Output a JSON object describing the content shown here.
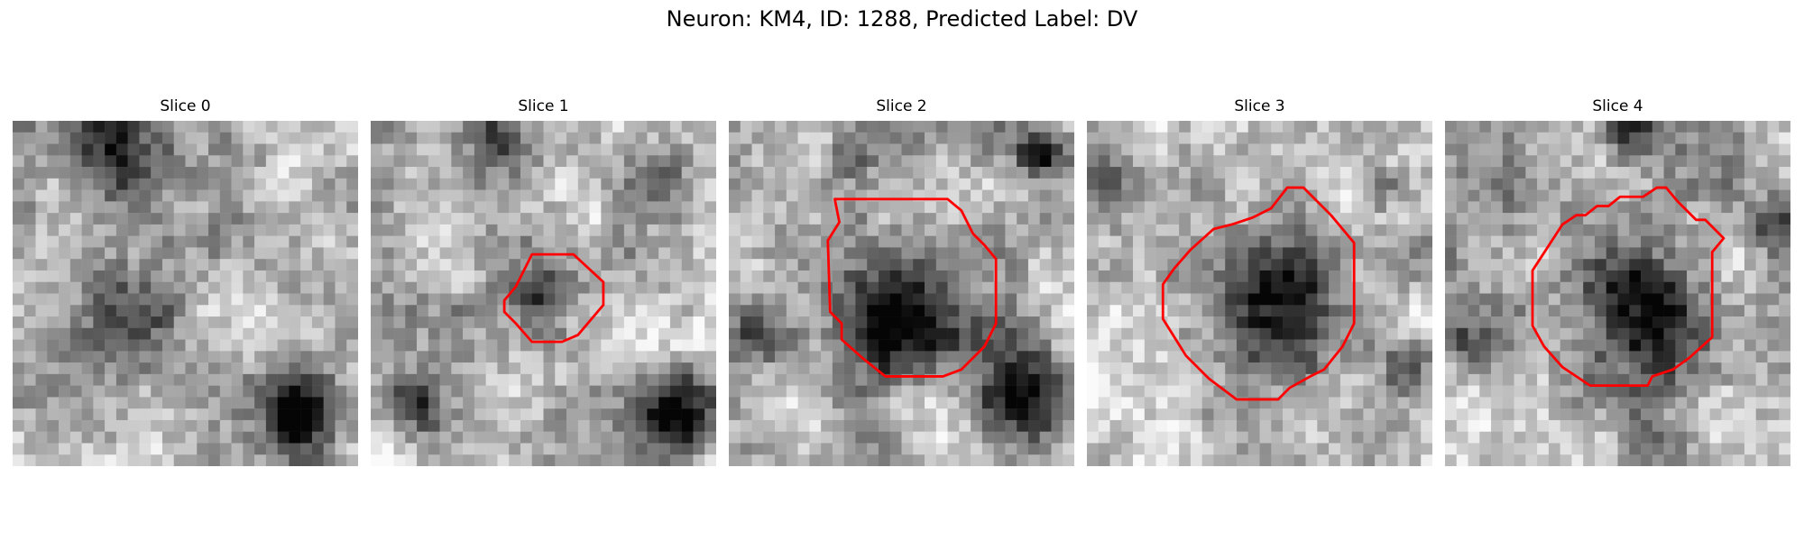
{
  "figure": {
    "title": "Neuron: KM4, ID: 1288, Predicted Label: DV"
  },
  "panels": [
    {
      "title": "Slice 0",
      "has_contour": false,
      "seed": 11,
      "blobs": [
        [
          0.32,
          0.55,
          0.18,
          0.35
        ],
        [
          0.85,
          0.85,
          0.14,
          0.75
        ],
        [
          0.28,
          0.08,
          0.14,
          0.55
        ],
        [
          0.58,
          0.35,
          0.08,
          0.25
        ]
      ]
    },
    {
      "title": "Slice 1",
      "has_contour": true,
      "seed": 23,
      "blobs": [
        [
          0.48,
          0.52,
          0.09,
          0.55
        ],
        [
          0.12,
          0.82,
          0.1,
          0.55
        ],
        [
          0.88,
          0.85,
          0.12,
          0.7
        ],
        [
          0.35,
          0.05,
          0.12,
          0.4
        ],
        [
          0.82,
          0.15,
          0.08,
          0.3
        ]
      ]
    },
    {
      "title": "Slice 2",
      "has_contour": true,
      "seed": 37,
      "blobs": [
        [
          0.52,
          0.55,
          0.2,
          0.75
        ],
        [
          0.85,
          0.8,
          0.16,
          0.7
        ],
        [
          0.08,
          0.62,
          0.1,
          0.45
        ],
        [
          0.9,
          0.1,
          0.07,
          0.6
        ],
        [
          0.35,
          0.1,
          0.07,
          0.35
        ]
      ]
    },
    {
      "title": "Slice 3",
      "has_contour": true,
      "seed": 51,
      "blobs": [
        [
          0.53,
          0.55,
          0.22,
          0.65
        ],
        [
          0.93,
          0.72,
          0.1,
          0.4
        ],
        [
          0.08,
          0.15,
          0.08,
          0.25
        ],
        [
          0.85,
          0.2,
          0.07,
          0.35
        ]
      ]
    },
    {
      "title": "Slice 4",
      "has_contour": true,
      "seed": 67,
      "blobs": [
        [
          0.57,
          0.52,
          0.21,
          0.7
        ],
        [
          0.96,
          0.3,
          0.1,
          0.55
        ],
        [
          0.52,
          0.02,
          0.08,
          0.45
        ],
        [
          0.05,
          0.65,
          0.1,
          0.3
        ]
      ]
    }
  ],
  "contour_color": "#ff0000"
}
